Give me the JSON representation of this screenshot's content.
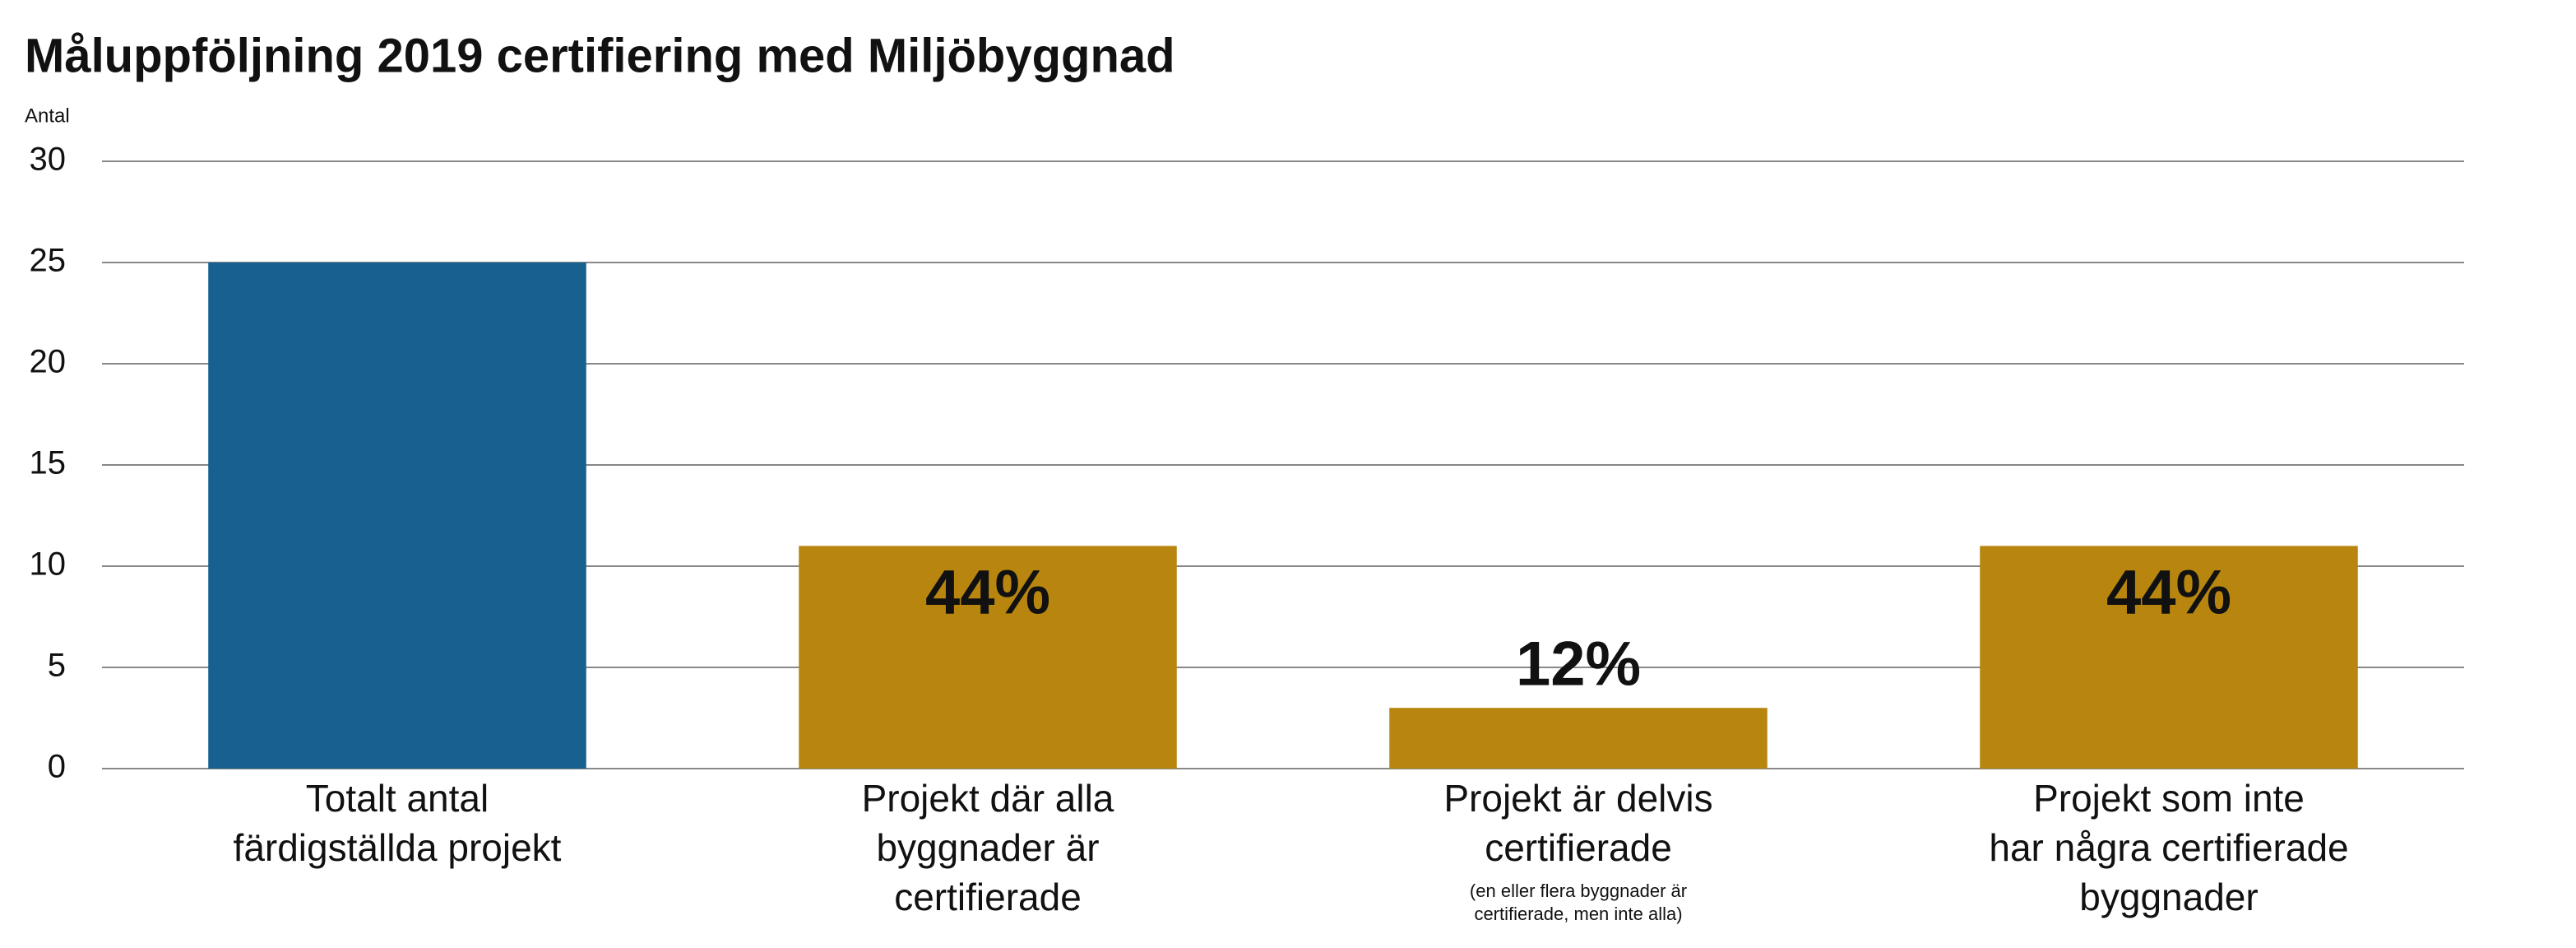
{
  "chart_data": {
    "type": "bar",
    "title": "Måluppföljning 2019 certifiering med Miljöbyggnad",
    "y_label": "Antal",
    "categories": [
      [
        "Totalt antal",
        "färdigställda projekt"
      ],
      [
        "Projekt där alla",
        "byggnader är",
        "certifierade"
      ],
      [
        "Projekt är delvis",
        "certifierade"
      ],
      [
        "Projekt som inte",
        "har några certifierade",
        "byggnader"
      ]
    ],
    "category_notes": [
      null,
      null,
      [
        "(en eller flera byggnader är",
        "certifierade, men inte alla)"
      ],
      null
    ],
    "values": [
      25,
      11,
      3,
      11
    ],
    "bar_labels": [
      null,
      "44%",
      "12%",
      "44%"
    ],
    "colors": [
      "#17608f",
      "#b8860f",
      "#b8860f",
      "#b8860f"
    ],
    "ylim": [
      0,
      30
    ],
    "yticks": [
      0,
      5,
      10,
      15,
      20,
      25,
      30
    ],
    "grid": true
  }
}
